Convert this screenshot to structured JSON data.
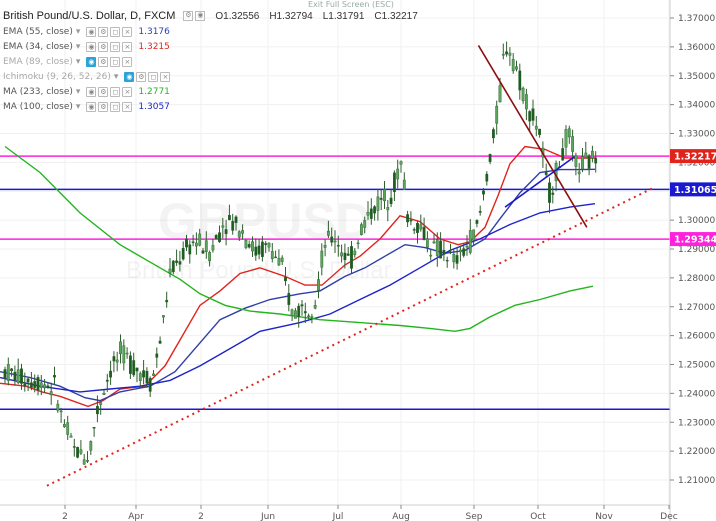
{
  "header": {
    "exit_full_screen": "Exit Full Screen (ESC)",
    "symbol": "British Pound/U.S. Dollar, D, FXCM",
    "open": "O1.32556",
    "high": "H1.32794",
    "low": "L1.31791",
    "close": "C1.32217"
  },
  "indicators": [
    {
      "name": "EMA (55, close)",
      "value": "1.3176",
      "color": "#2f3fa8",
      "visible": true
    },
    {
      "name": "EMA (34, close)",
      "value": "1.3215",
      "color": "#e0241c",
      "visible": true
    },
    {
      "name": "EMA (89, close)",
      "value": "",
      "color": "#999999",
      "visible": false
    },
    {
      "name": "Ichimoku (9, 26, 52, 26)",
      "value": "",
      "color": "#999999",
      "visible": false
    },
    {
      "name": "MA (233, close)",
      "value": "1.2771",
      "color": "#23b51e",
      "visible": true
    },
    {
      "name": "MA (100, close)",
      "value": "1.3057",
      "color": "#1d24c9",
      "visible": true
    }
  ],
  "watermark": {
    "symbol": "GBPUSD",
    "name": "British Pound/U.S. Dollar"
  },
  "chart_data": {
    "type": "candlestick",
    "title": "British Pound/U.S. Dollar, D, FXCM",
    "ylim": [
      1.205,
      1.375
    ],
    "y_ticks": [
      "1.37000",
      "1.36000",
      "1.35000",
      "1.34000",
      "1.33000",
      "1.32000",
      "1.31000",
      "1.30000",
      "1.29000",
      "1.28000",
      "1.27000",
      "1.26000",
      "1.25000",
      "1.24000",
      "1.23000",
      "1.22000",
      "1.21000"
    ],
    "x_ticks": [
      "2",
      "Apr",
      "2",
      "Jun",
      "Jul",
      "Aug",
      "Sep",
      "Oct",
      "Nov",
      "Dec"
    ],
    "price_labels": [
      {
        "label": "1.32217",
        "value": 1.32217,
        "color": "#e0241c"
      },
      {
        "label": "1.31065",
        "value": 1.31065,
        "color": "#1a1ad0"
      },
      {
        "label": "1.29344",
        "value": 1.29344,
        "color": "#ff22dd"
      }
    ],
    "horizontal_lines": [
      {
        "value": 1.32217,
        "color": "#ff22dd"
      },
      {
        "value": 1.31065,
        "color": "#1a1ad0"
      },
      {
        "value": 1.29344,
        "color": "#ff22dd"
      },
      {
        "value": 1.2345,
        "color": "#1a1ad0"
      }
    ],
    "trend_lines": [
      {
        "style": "dotted",
        "color": "#e0241c",
        "from": [
          "2017-02-22",
          1.208
        ],
        "to": [
          "2017-12-15",
          1.311
        ]
      },
      {
        "style": "solid",
        "color": "#8b0f0f",
        "from": [
          "2017-09-21",
          1.3605
        ],
        "to": [
          "2017-11-13",
          1.2975
        ]
      },
      {
        "style": "solid",
        "color": "#1a1ad0",
        "from": [
          "2017-10-04",
          1.3045
        ],
        "to": [
          "2017-11-07",
          1.322
        ]
      }
    ],
    "series": [
      {
        "name": "EMA (34, close)",
        "color": "#e0241c",
        "points": [
          [
            0,
            1.2435
          ],
          [
            26,
            1.2425
          ],
          [
            42,
            1.2405
          ],
          [
            60,
            1.239
          ],
          [
            88,
            1.2355
          ],
          [
            103,
            1.2375
          ],
          [
            120,
            1.2415
          ],
          [
            145,
            1.2425
          ],
          [
            165,
            1.2495
          ],
          [
            180,
            1.2585
          ],
          [
            200,
            1.2705
          ],
          [
            220,
            1.2755
          ],
          [
            240,
            1.2815
          ],
          [
            260,
            1.2835
          ],
          [
            285,
            1.2805
          ],
          [
            305,
            1.2775
          ],
          [
            322,
            1.2775
          ],
          [
            345,
            1.2845
          ],
          [
            360,
            1.2875
          ],
          [
            380,
            1.2935
          ],
          [
            400,
            1.3015
          ],
          [
            420,
            1.2995
          ],
          [
            440,
            1.2935
          ],
          [
            458,
            1.2915
          ],
          [
            470,
            1.2925
          ],
          [
            485,
            1.2975
          ],
          [
            498,
            1.3085
          ],
          [
            510,
            1.3195
          ],
          [
            525,
            1.3255
          ],
          [
            545,
            1.3245
          ],
          [
            565,
            1.3215
          ],
          [
            585,
            1.3215
          ],
          [
            595,
            1.3215
          ]
        ]
      },
      {
        "name": "EMA (55, close)",
        "color": "#2f3fa8",
        "points": [
          [
            0,
            1.2475
          ],
          [
            30,
            1.2455
          ],
          [
            60,
            1.2425
          ],
          [
            85,
            1.2385
          ],
          [
            100,
            1.2375
          ],
          [
            120,
            1.2405
          ],
          [
            150,
            1.2425
          ],
          [
            175,
            1.2475
          ],
          [
            200,
            1.2575
          ],
          [
            220,
            1.2655
          ],
          [
            245,
            1.2695
          ],
          [
            270,
            1.2725
          ],
          [
            300,
            1.2745
          ],
          [
            320,
            1.2755
          ],
          [
            345,
            1.2805
          ],
          [
            365,
            1.2835
          ],
          [
            385,
            1.2875
          ],
          [
            405,
            1.2915
          ],
          [
            425,
            1.2905
          ],
          [
            445,
            1.2885
          ],
          [
            465,
            1.2895
          ],
          [
            485,
            1.2935
          ],
          [
            500,
            1.3005
          ],
          [
            520,
            1.3095
          ],
          [
            540,
            1.3165
          ],
          [
            560,
            1.3175
          ],
          [
            580,
            1.3175
          ],
          [
            595,
            1.3176
          ]
        ]
      },
      {
        "name": "MA (100, close)",
        "color": "#1d24c9",
        "points": [
          [
            0,
            1.2455
          ],
          [
            40,
            1.2425
          ],
          [
            80,
            1.2405
          ],
          [
            110,
            1.2415
          ],
          [
            140,
            1.2425
          ],
          [
            170,
            1.2445
          ],
          [
            200,
            1.2495
          ],
          [
            230,
            1.2555
          ],
          [
            260,
            1.2615
          ],
          [
            300,
            1.2645
          ],
          [
            330,
            1.2675
          ],
          [
            360,
            1.2725
          ],
          [
            390,
            1.2775
          ],
          [
            420,
            1.2835
          ],
          [
            450,
            1.2895
          ],
          [
            480,
            1.2935
          ],
          [
            510,
            1.2985
          ],
          [
            540,
            1.3025
          ],
          [
            570,
            1.3045
          ],
          [
            595,
            1.3057
          ]
        ]
      },
      {
        "name": "MA (233, close)",
        "color": "#23b51e",
        "points": [
          [
            5,
            1.3255
          ],
          [
            40,
            1.3165
          ],
          [
            80,
            1.3025
          ],
          [
            120,
            1.2915
          ],
          [
            160,
            1.2835
          ],
          [
            180,
            1.2795
          ],
          [
            200,
            1.2745
          ],
          [
            225,
            1.2705
          ],
          [
            250,
            1.2685
          ],
          [
            280,
            1.2675
          ],
          [
            320,
            1.2655
          ],
          [
            360,
            1.2645
          ],
          [
            400,
            1.2635
          ],
          [
            430,
            1.2625
          ],
          [
            455,
            1.2615
          ],
          [
            470,
            1.2625
          ],
          [
            490,
            1.2665
          ],
          [
            515,
            1.2705
          ],
          [
            540,
            1.2725
          ],
          [
            570,
            1.2755
          ],
          [
            593,
            1.2771
          ]
        ]
      }
    ]
  }
}
